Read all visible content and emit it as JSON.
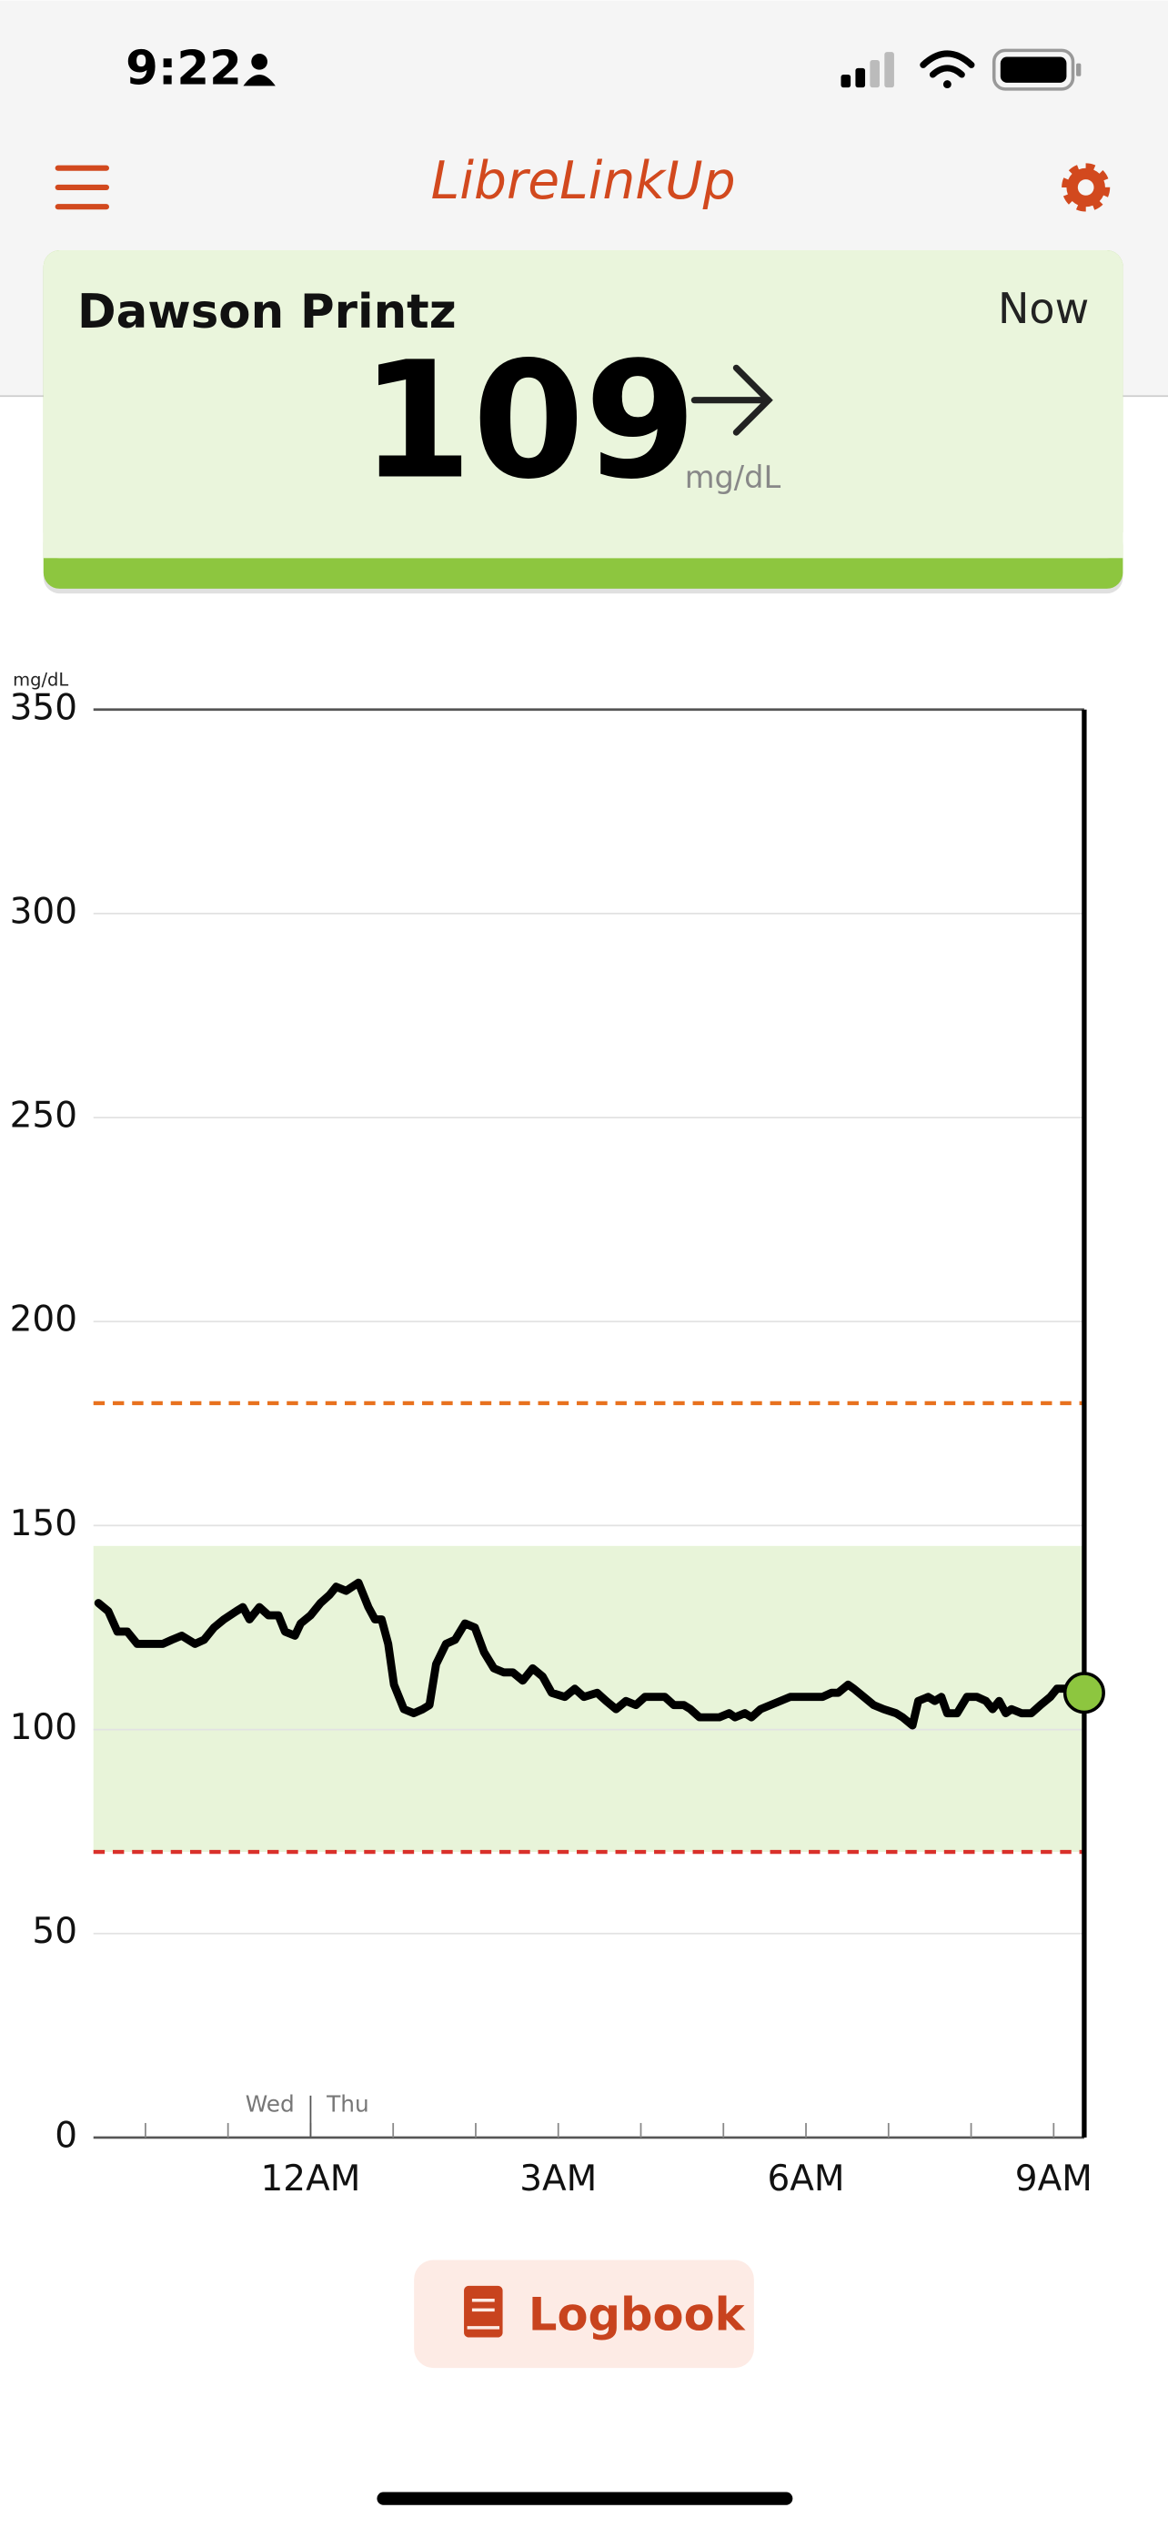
{
  "status_bar": {
    "time": "9:22"
  },
  "header": {
    "title": "LibreLinkUp"
  },
  "reading_card": {
    "name": "Dawson Printz",
    "time": "Now",
    "value": 109,
    "unit": "mg/dL"
  },
  "chart_data": {
    "type": "line",
    "y_unit": "mg/dL",
    "xlim": [
      -2.63,
      9.37
    ],
    "ylim": [
      0,
      350
    ],
    "yticks": [
      0,
      50,
      100,
      150,
      200,
      250,
      300,
      350
    ],
    "xticks": [
      {
        "value": 0,
        "label": "12AM"
      },
      {
        "value": 3,
        "label": "3AM"
      },
      {
        "value": 6,
        "label": "6AM"
      },
      {
        "value": 9,
        "label": "9AM"
      }
    ],
    "minor_xticks": [
      -2,
      -1,
      1,
      2,
      4,
      5,
      7,
      8
    ],
    "day_divider": {
      "x": 0,
      "before": "Wed",
      "after": "Thu"
    },
    "grid": true,
    "target_band": [
      70,
      145
    ],
    "band_color": "#e8f4d9",
    "high_line": {
      "value": 180,
      "color": "#e8711e"
    },
    "low_line": {
      "value": 70,
      "color": "#d9312b"
    },
    "current_marker_color": "#8dc63f",
    "series": [
      {
        "color": "#000000",
        "x": [
          -2.57,
          -2.45,
          -2.34,
          -2.22,
          -2.1,
          -1.99,
          -1.79,
          -1.68,
          -1.56,
          -1.4,
          -1.29,
          -1.17,
          -1.05,
          -0.9,
          -0.82,
          -0.74,
          -0.62,
          -0.51,
          -0.39,
          -0.31,
          -0.19,
          -0.12,
          0,
          0.12,
          0.23,
          0.31,
          0.43,
          0.58,
          0.7,
          0.78,
          0.86,
          0.94,
          1.01,
          1.13,
          1.25,
          1.36,
          1.44,
          1.52,
          1.64,
          1.75,
          1.87,
          1.99,
          2.1,
          2.22,
          2.34,
          2.45,
          2.57,
          2.69,
          2.81,
          2.92,
          3.08,
          3.2,
          3.31,
          3.47,
          3.58,
          3.7,
          3.82,
          3.94,
          4.05,
          4.17,
          4.29,
          4.4,
          4.52,
          4.6,
          4.71,
          4.83,
          4.95,
          5.07,
          5.14,
          5.26,
          5.34,
          5.45,
          5.57,
          5.69,
          5.81,
          5.92,
          6.04,
          6.2,
          6.31,
          6.39,
          6.51,
          6.58,
          6.7,
          6.82,
          6.94,
          7.09,
          7.17,
          7.29,
          7.36,
          7.48,
          7.56,
          7.64,
          7.71,
          7.83,
          7.95,
          8.07,
          8.18,
          8.26,
          8.34,
          8.42,
          8.49,
          8.61,
          8.73,
          8.84,
          8.96,
          9.04,
          9.16,
          9.27,
          9.37
        ],
        "values": [
          131,
          129,
          124,
          124,
          121,
          121,
          121,
          122,
          123,
          121,
          122,
          125,
          127,
          129,
          130,
          127,
          130,
          128,
          128,
          124,
          123,
          126,
          128,
          131,
          133,
          135,
          134,
          136,
          130,
          127,
          127,
          121,
          111,
          105,
          104,
          105,
          106,
          116,
          121,
          122,
          126,
          125,
          119,
          115,
          114,
          114,
          112,
          115,
          113,
          109,
          108,
          110,
          108,
          109,
          107,
          105,
          107,
          106,
          108,
          108,
          108,
          106,
          106,
          105,
          103,
          103,
          103,
          104,
          103,
          104,
          103,
          105,
          106,
          107,
          108,
          108,
          108,
          108,
          109,
          109,
          111,
          110,
          108,
          106,
          105,
          104,
          103,
          101,
          107,
          108,
          107,
          108,
          104,
          104,
          108,
          108,
          107,
          105,
          107,
          104,
          105,
          104,
          104,
          106,
          108,
          110,
          110,
          109,
          109
        ]
      }
    ]
  },
  "button": {
    "label": "Logbook"
  }
}
